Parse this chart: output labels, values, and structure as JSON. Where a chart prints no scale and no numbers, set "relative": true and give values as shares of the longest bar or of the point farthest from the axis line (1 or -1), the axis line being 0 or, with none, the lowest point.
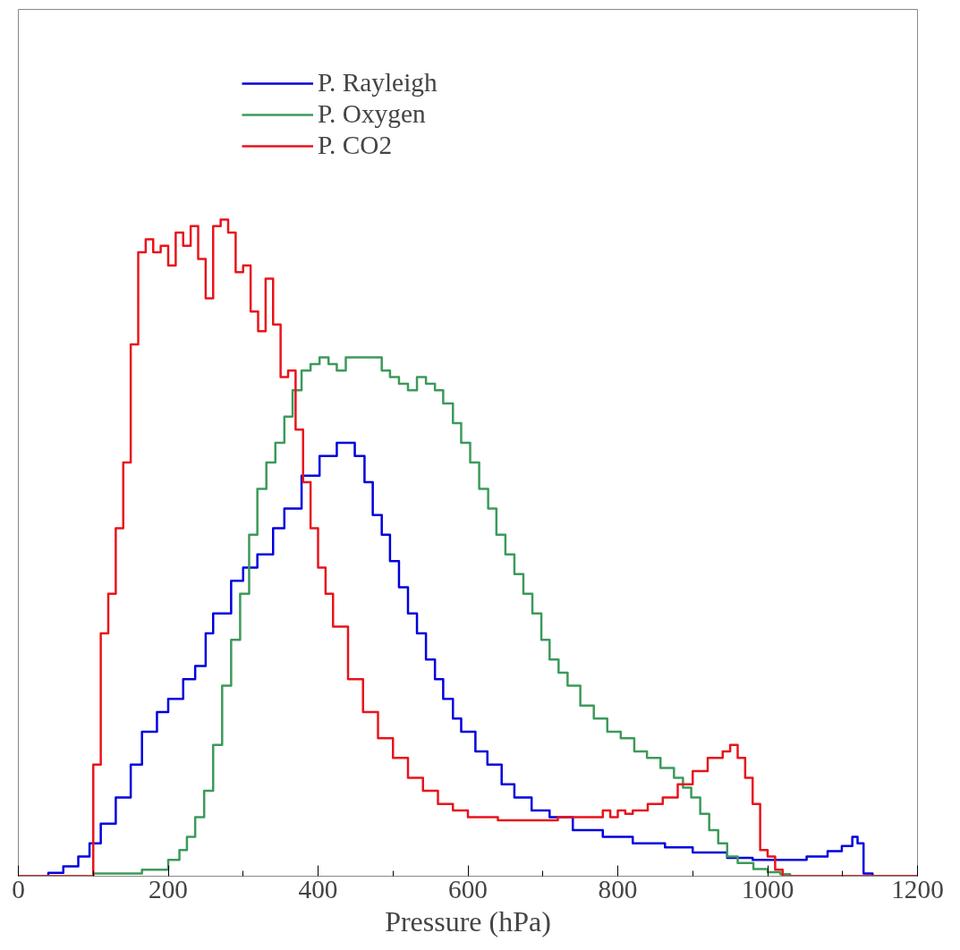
{
  "chart_data": {
    "type": "step",
    "xlabel": "Pressure (hPa)",
    "relative": true,
    "xlim": [
      0,
      1200
    ],
    "xticks": [
      0,
      200,
      400,
      600,
      800,
      1000,
      1200
    ],
    "grid": false,
    "legend": "top",
    "marker": "none",
    "line_style": "solid",
    "series": [
      {
        "name": "P. Rayleigh",
        "color": "#0000dd",
        "x": [
          0,
          40,
          60,
          80,
          95,
          110,
          130,
          150,
          165,
          185,
          200,
          220,
          236,
          250,
          260,
          284,
          300,
          319,
          340,
          355,
          378,
          402,
          425,
          449,
          462,
          473,
          485,
          496,
          508,
          520,
          532,
          544,
          556,
          567,
          580,
          591,
          610,
          626,
          645,
          662,
          685,
          709,
          740,
          780,
          820,
          863,
          900,
          946,
          980,
          1017,
          1052,
          1080,
          1099,
          1113,
          1120,
          1128,
          1140,
          1200
        ],
        "values": [
          0,
          0.005,
          0.015,
          0.03,
          0.05,
          0.08,
          0.12,
          0.17,
          0.22,
          0.25,
          0.27,
          0.3,
          0.32,
          0.37,
          0.4,
          0.45,
          0.47,
          0.49,
          0.53,
          0.56,
          0.61,
          0.64,
          0.66,
          0.64,
          0.6,
          0.55,
          0.52,
          0.48,
          0.44,
          0.4,
          0.37,
          0.33,
          0.3,
          0.27,
          0.24,
          0.22,
          0.19,
          0.17,
          0.14,
          0.12,
          0.1,
          0.09,
          0.07,
          0.06,
          0.05,
          0.044,
          0.036,
          0.028,
          0.025,
          0.025,
          0.03,
          0.038,
          0.046,
          0.06,
          0.05,
          0.004,
          0,
          0
        ]
      },
      {
        "name": "P. Oxygen",
        "color": "#3c9a5a",
        "x": [
          0,
          90,
          100,
          165,
          200,
          215,
          225,
          236,
          248,
          260,
          272,
          284,
          296,
          308,
          319,
          331,
          343,
          355,
          366,
          378,
          390,
          402,
          414,
          425,
          437,
          449,
          461,
          473,
          485,
          496,
          508,
          520,
          532,
          544,
          556,
          567,
          580,
          591,
          603,
          615,
          627,
          638,
          650,
          662,
          674,
          686,
          698,
          709,
          721,
          733,
          750,
          768,
          786,
          804,
          822,
          839,
          857,
          875,
          887,
          898,
          910,
          922,
          934,
          946,
          960,
          981,
          1000,
          1017,
          1030,
          1200
        ],
        "values": [
          0,
          0,
          0.004,
          0.01,
          0.025,
          0.04,
          0.06,
          0.09,
          0.13,
          0.2,
          0.29,
          0.36,
          0.43,
          0.52,
          0.59,
          0.63,
          0.66,
          0.7,
          0.74,
          0.77,
          0.78,
          0.79,
          0.78,
          0.77,
          0.79,
          0.79,
          0.79,
          0.79,
          0.77,
          0.76,
          0.75,
          0.74,
          0.76,
          0.75,
          0.74,
          0.72,
          0.69,
          0.66,
          0.63,
          0.59,
          0.56,
          0.52,
          0.49,
          0.46,
          0.43,
          0.4,
          0.36,
          0.33,
          0.31,
          0.29,
          0.26,
          0.24,
          0.22,
          0.21,
          0.19,
          0.18,
          0.165,
          0.15,
          0.135,
          0.12,
          0.095,
          0.07,
          0.05,
          0.03,
          0.02,
          0.011,
          0.006,
          0.003,
          0,
          0
        ]
      },
      {
        "name": "P. CO2",
        "color": "#e8141c",
        "x": [
          0,
          90,
          100,
          110,
          120,
          130,
          140,
          150,
          160,
          170,
          180,
          190,
          200,
          210,
          220,
          230,
          240,
          250,
          260,
          270,
          280,
          290,
          300,
          310,
          320,
          330,
          340,
          350,
          360,
          370,
          380,
          390,
          400,
          410,
          420,
          440,
          460,
          480,
          500,
          520,
          540,
          560,
          580,
          600,
          640,
          700,
          720,
          760,
          780,
          790,
          800,
          810,
          820,
          840,
          860,
          880,
          900,
          920,
          940,
          950,
          960,
          970,
          980,
          990,
          1000,
          1010,
          1020,
          1200
        ],
        "values": [
          0,
          0,
          0.17,
          0.37,
          0.43,
          0.53,
          0.63,
          0.81,
          0.95,
          0.97,
          0.95,
          0.96,
          0.93,
          0.98,
          0.96,
          0.99,
          0.94,
          0.88,
          0.99,
          1.0,
          0.98,
          0.92,
          0.93,
          0.86,
          0.83,
          0.91,
          0.84,
          0.76,
          0.77,
          0.68,
          0.6,
          0.53,
          0.47,
          0.43,
          0.38,
          0.3,
          0.25,
          0.21,
          0.18,
          0.15,
          0.13,
          0.11,
          0.1,
          0.09,
          0.085,
          0.085,
          0.09,
          0.09,
          0.1,
          0.09,
          0.1,
          0.095,
          0.1,
          0.11,
          0.12,
          0.14,
          0.16,
          0.18,
          0.19,
          0.2,
          0.18,
          0.15,
          0.11,
          0.04,
          0.03,
          0.01,
          0,
          0
        ]
      }
    ]
  }
}
